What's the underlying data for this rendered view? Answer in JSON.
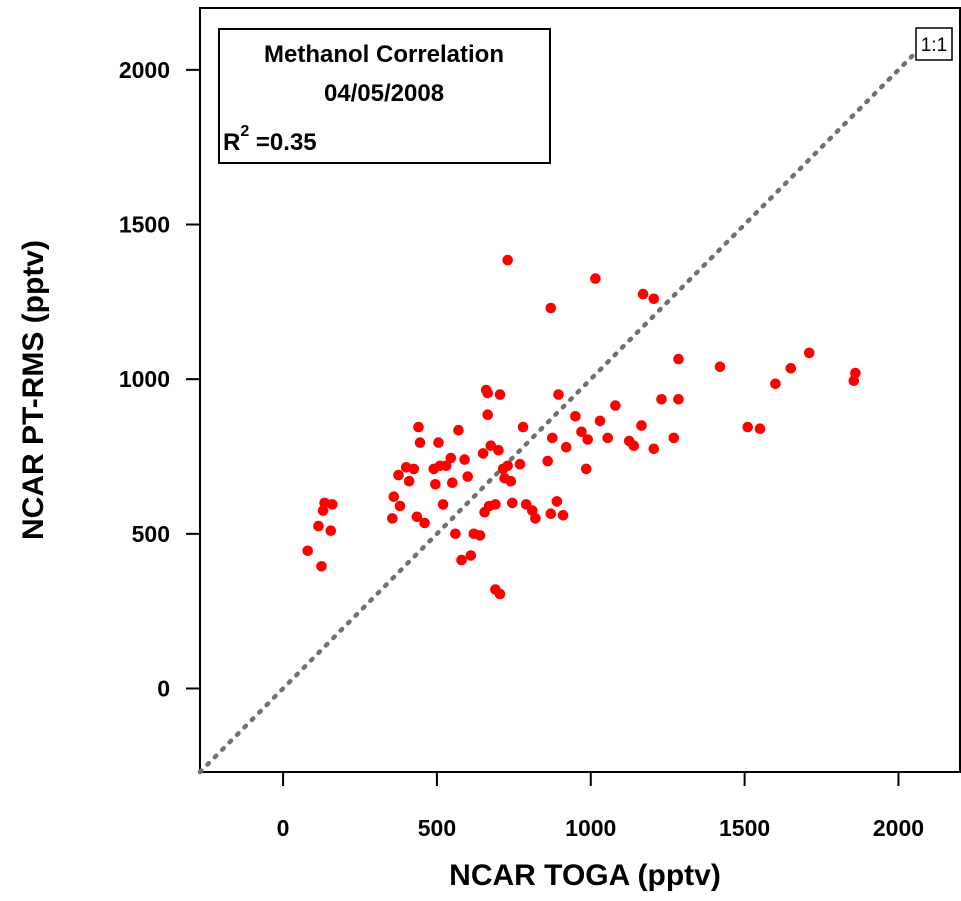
{
  "chart_data": {
    "type": "scatter",
    "title": "Methanol Correlation",
    "subtitle": "04/05/2008",
    "r2_label": "R",
    "r2_superscript": "2",
    "r2_value": " =0.35",
    "xlabel": "NCAR TOGA (pptv)",
    "ylabel": "NCAR PT-RMS (pptv)",
    "xlim": [
      -270,
      2200
    ],
    "ylim": [
      -270,
      2200
    ],
    "xticks": [
      0,
      500,
      1000,
      1500,
      2000
    ],
    "yticks": [
      0,
      500,
      1000,
      1500,
      2000
    ],
    "grid": false,
    "reference_line": {
      "label": "1:1",
      "slope": 1,
      "intercept": 0,
      "color": "#707070",
      "style": "dotted"
    },
    "marker_color": "#ff0000",
    "points": [
      [
        80,
        445
      ],
      [
        115,
        525
      ],
      [
        125,
        395
      ],
      [
        130,
        575
      ],
      [
        135,
        600
      ],
      [
        155,
        510
      ],
      [
        160,
        595
      ],
      [
        355,
        550
      ],
      [
        360,
        620
      ],
      [
        375,
        690
      ],
      [
        380,
        590
      ],
      [
        400,
        715
      ],
      [
        410,
        670
      ],
      [
        425,
        710
      ],
      [
        435,
        555
      ],
      [
        440,
        845
      ],
      [
        445,
        795
      ],
      [
        460,
        535
      ],
      [
        490,
        710
      ],
      [
        495,
        660
      ],
      [
        505,
        795
      ],
      [
        510,
        720
      ],
      [
        520,
        595
      ],
      [
        530,
        720
      ],
      [
        545,
        745
      ],
      [
        550,
        665
      ],
      [
        560,
        500
      ],
      [
        570,
        835
      ],
      [
        580,
        415
      ],
      [
        590,
        740
      ],
      [
        600,
        685
      ],
      [
        610,
        430
      ],
      [
        620,
        500
      ],
      [
        640,
        495
      ],
      [
        650,
        760
      ],
      [
        655,
        570
      ],
      [
        660,
        965
      ],
      [
        665,
        955
      ],
      [
        665,
        885
      ],
      [
        670,
        590
      ],
      [
        675,
        785
      ],
      [
        690,
        320
      ],
      [
        690,
        595
      ],
      [
        700,
        770
      ],
      [
        705,
        305
      ],
      [
        705,
        950
      ],
      [
        715,
        710
      ],
      [
        720,
        680
      ],
      [
        730,
        720
      ],
      [
        730,
        1385
      ],
      [
        740,
        670
      ],
      [
        745,
        600
      ],
      [
        770,
        725
      ],
      [
        780,
        845
      ],
      [
        790,
        595
      ],
      [
        810,
        575
      ],
      [
        820,
        550
      ],
      [
        860,
        735
      ],
      [
        870,
        1230
      ],
      [
        870,
        565
      ],
      [
        875,
        810
      ],
      [
        890,
        605
      ],
      [
        895,
        950
      ],
      [
        910,
        560
      ],
      [
        920,
        780
      ],
      [
        950,
        880
      ],
      [
        970,
        830
      ],
      [
        985,
        710
      ],
      [
        990,
        805
      ],
      [
        1015,
        1325
      ],
      [
        1030,
        865
      ],
      [
        1055,
        810
      ],
      [
        1080,
        915
      ],
      [
        1125,
        800
      ],
      [
        1140,
        785
      ],
      [
        1165,
        850
      ],
      [
        1170,
        1275
      ],
      [
        1205,
        775
      ],
      [
        1205,
        1260
      ],
      [
        1230,
        935
      ],
      [
        1270,
        810
      ],
      [
        1285,
        1065
      ],
      [
        1285,
        935
      ],
      [
        1420,
        1040
      ],
      [
        1510,
        845
      ],
      [
        1550,
        840
      ],
      [
        1600,
        985
      ],
      [
        1650,
        1035
      ],
      [
        1710,
        1085
      ],
      [
        1855,
        995
      ],
      [
        1860,
        1020
      ]
    ]
  }
}
